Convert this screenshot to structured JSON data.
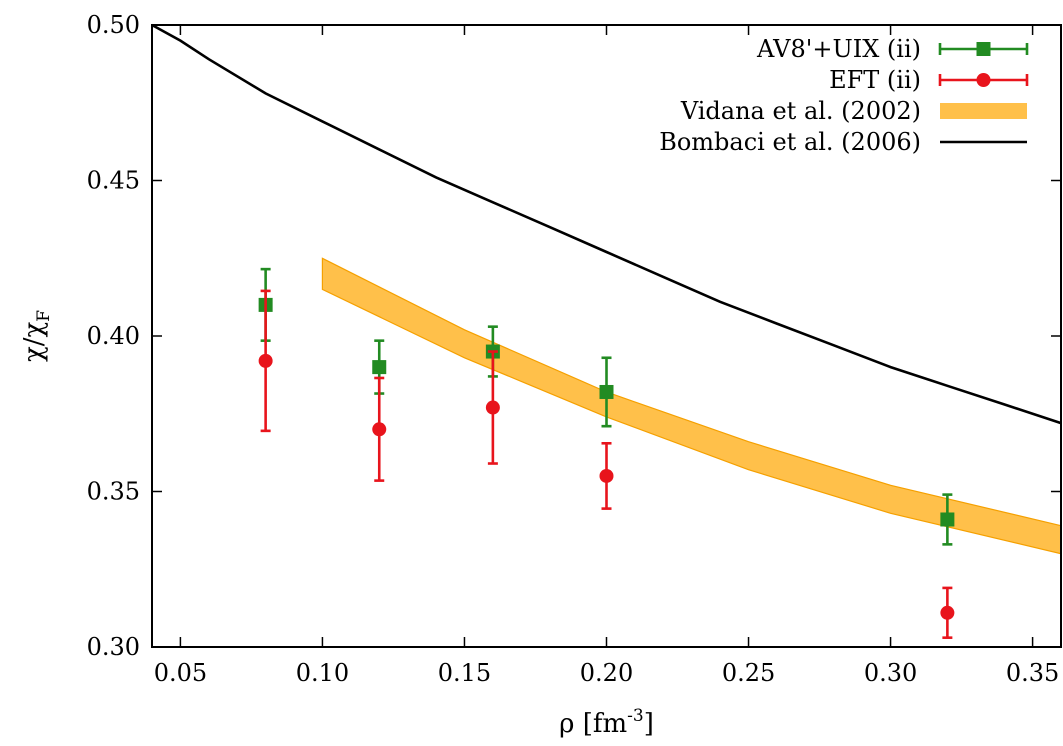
{
  "chart_data": {
    "type": "scatter",
    "xlabel": "ρ [fm",
    "xlabel_sup": "-3",
    "xlabel_end": "]",
    "ylabel": "χ/χ",
    "ylabel_sub": "F",
    "xlim": [
      0.04,
      0.36
    ],
    "ylim": [
      0.3,
      0.5
    ],
    "xticks": [
      0.05,
      0.1,
      0.15,
      0.2,
      0.25,
      0.3,
      0.35
    ],
    "xtick_labels": [
      "0.05",
      "0.10",
      "0.15",
      "0.20",
      "0.25",
      "0.30",
      "0.35"
    ],
    "yticks": [
      0.3,
      0.35,
      0.4,
      0.45,
      0.5
    ],
    "ytick_labels": [
      "0.30",
      "0.35",
      "0.40",
      "0.45",
      "0.50"
    ],
    "grid": false,
    "legend_position": "top-right",
    "series": [
      {
        "name": "AV8'+UIX (ii)",
        "kind": "points-errorbars",
        "marker": "square",
        "color": "#228b22",
        "points": [
          {
            "x": 0.08,
            "y": 0.41,
            "err": 0.0115
          },
          {
            "x": 0.12,
            "y": 0.39,
            "err": 0.0085
          },
          {
            "x": 0.16,
            "y": 0.395,
            "err": 0.008
          },
          {
            "x": 0.2,
            "y": 0.382,
            "err": 0.011
          },
          {
            "x": 0.32,
            "y": 0.341,
            "err": 0.008
          }
        ]
      },
      {
        "name": "EFT (ii)",
        "kind": "points-errorbars",
        "marker": "circle",
        "color": "#e8141c",
        "points": [
          {
            "x": 0.08,
            "y": 0.392,
            "err": 0.0225
          },
          {
            "x": 0.12,
            "y": 0.37,
            "err": 0.0165
          },
          {
            "x": 0.16,
            "y": 0.377,
            "err": 0.018
          },
          {
            "x": 0.2,
            "y": 0.355,
            "err": 0.0105
          },
          {
            "x": 0.32,
            "y": 0.311,
            "err": 0.008
          }
        ]
      },
      {
        "name": "Vidana et al. (2002)",
        "kind": "band",
        "color": "#ffc04a",
        "edge_color": "#f5a000",
        "x": [
          0.1,
          0.15,
          0.2,
          0.25,
          0.3,
          0.36
        ],
        "upper": [
          0.425,
          0.402,
          0.382,
          0.366,
          0.352,
          0.339
        ],
        "lower": [
          0.415,
          0.393,
          0.374,
          0.357,
          0.343,
          0.33
        ]
      },
      {
        "name": "Bombaci et al. (2006)",
        "kind": "line",
        "color": "#000000",
        "x": [
          0.04,
          0.05,
          0.06,
          0.08,
          0.1,
          0.12,
          0.14,
          0.16,
          0.18,
          0.2,
          0.22,
          0.24,
          0.26,
          0.28,
          0.3,
          0.32,
          0.34,
          0.36
        ],
        "y": [
          0.5,
          0.495,
          0.489,
          0.478,
          0.469,
          0.46,
          0.451,
          0.443,
          0.435,
          0.427,
          0.419,
          0.411,
          0.404,
          0.397,
          0.39,
          0.384,
          0.378,
          0.372
        ]
      }
    ]
  }
}
